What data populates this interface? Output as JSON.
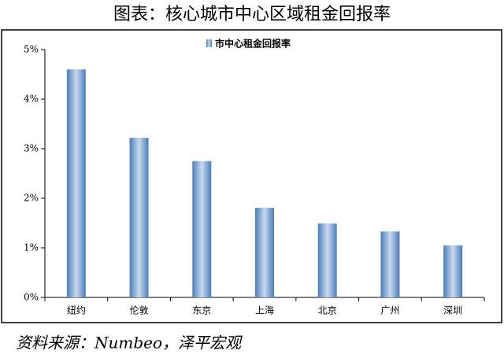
{
  "chart_data": {
    "type": "bar",
    "title": "图表：核心城市中心区域租金回报率",
    "source": "资料来源：Numbeo，泽平宏观",
    "categories": [
      "纽约",
      "伦敦",
      "东京",
      "上海",
      "北京",
      "广州",
      "深圳"
    ],
    "series": [
      {
        "name": "市中心租金回报率",
        "color": "#4a7ebb",
        "values": [
          4.6,
          3.22,
          2.75,
          1.81,
          1.49,
          1.33,
          1.05
        ]
      }
    ],
    "ylim": [
      0,
      5
    ],
    "yticks": [
      {
        "value": 0,
        "label": "0%"
      },
      {
        "value": 1,
        "label": "1%"
      },
      {
        "value": 2,
        "label": "2%"
      },
      {
        "value": 3,
        "label": "3%"
      },
      {
        "value": 4,
        "label": "4%"
      },
      {
        "value": 5,
        "label": "5%"
      }
    ],
    "grid": false
  }
}
